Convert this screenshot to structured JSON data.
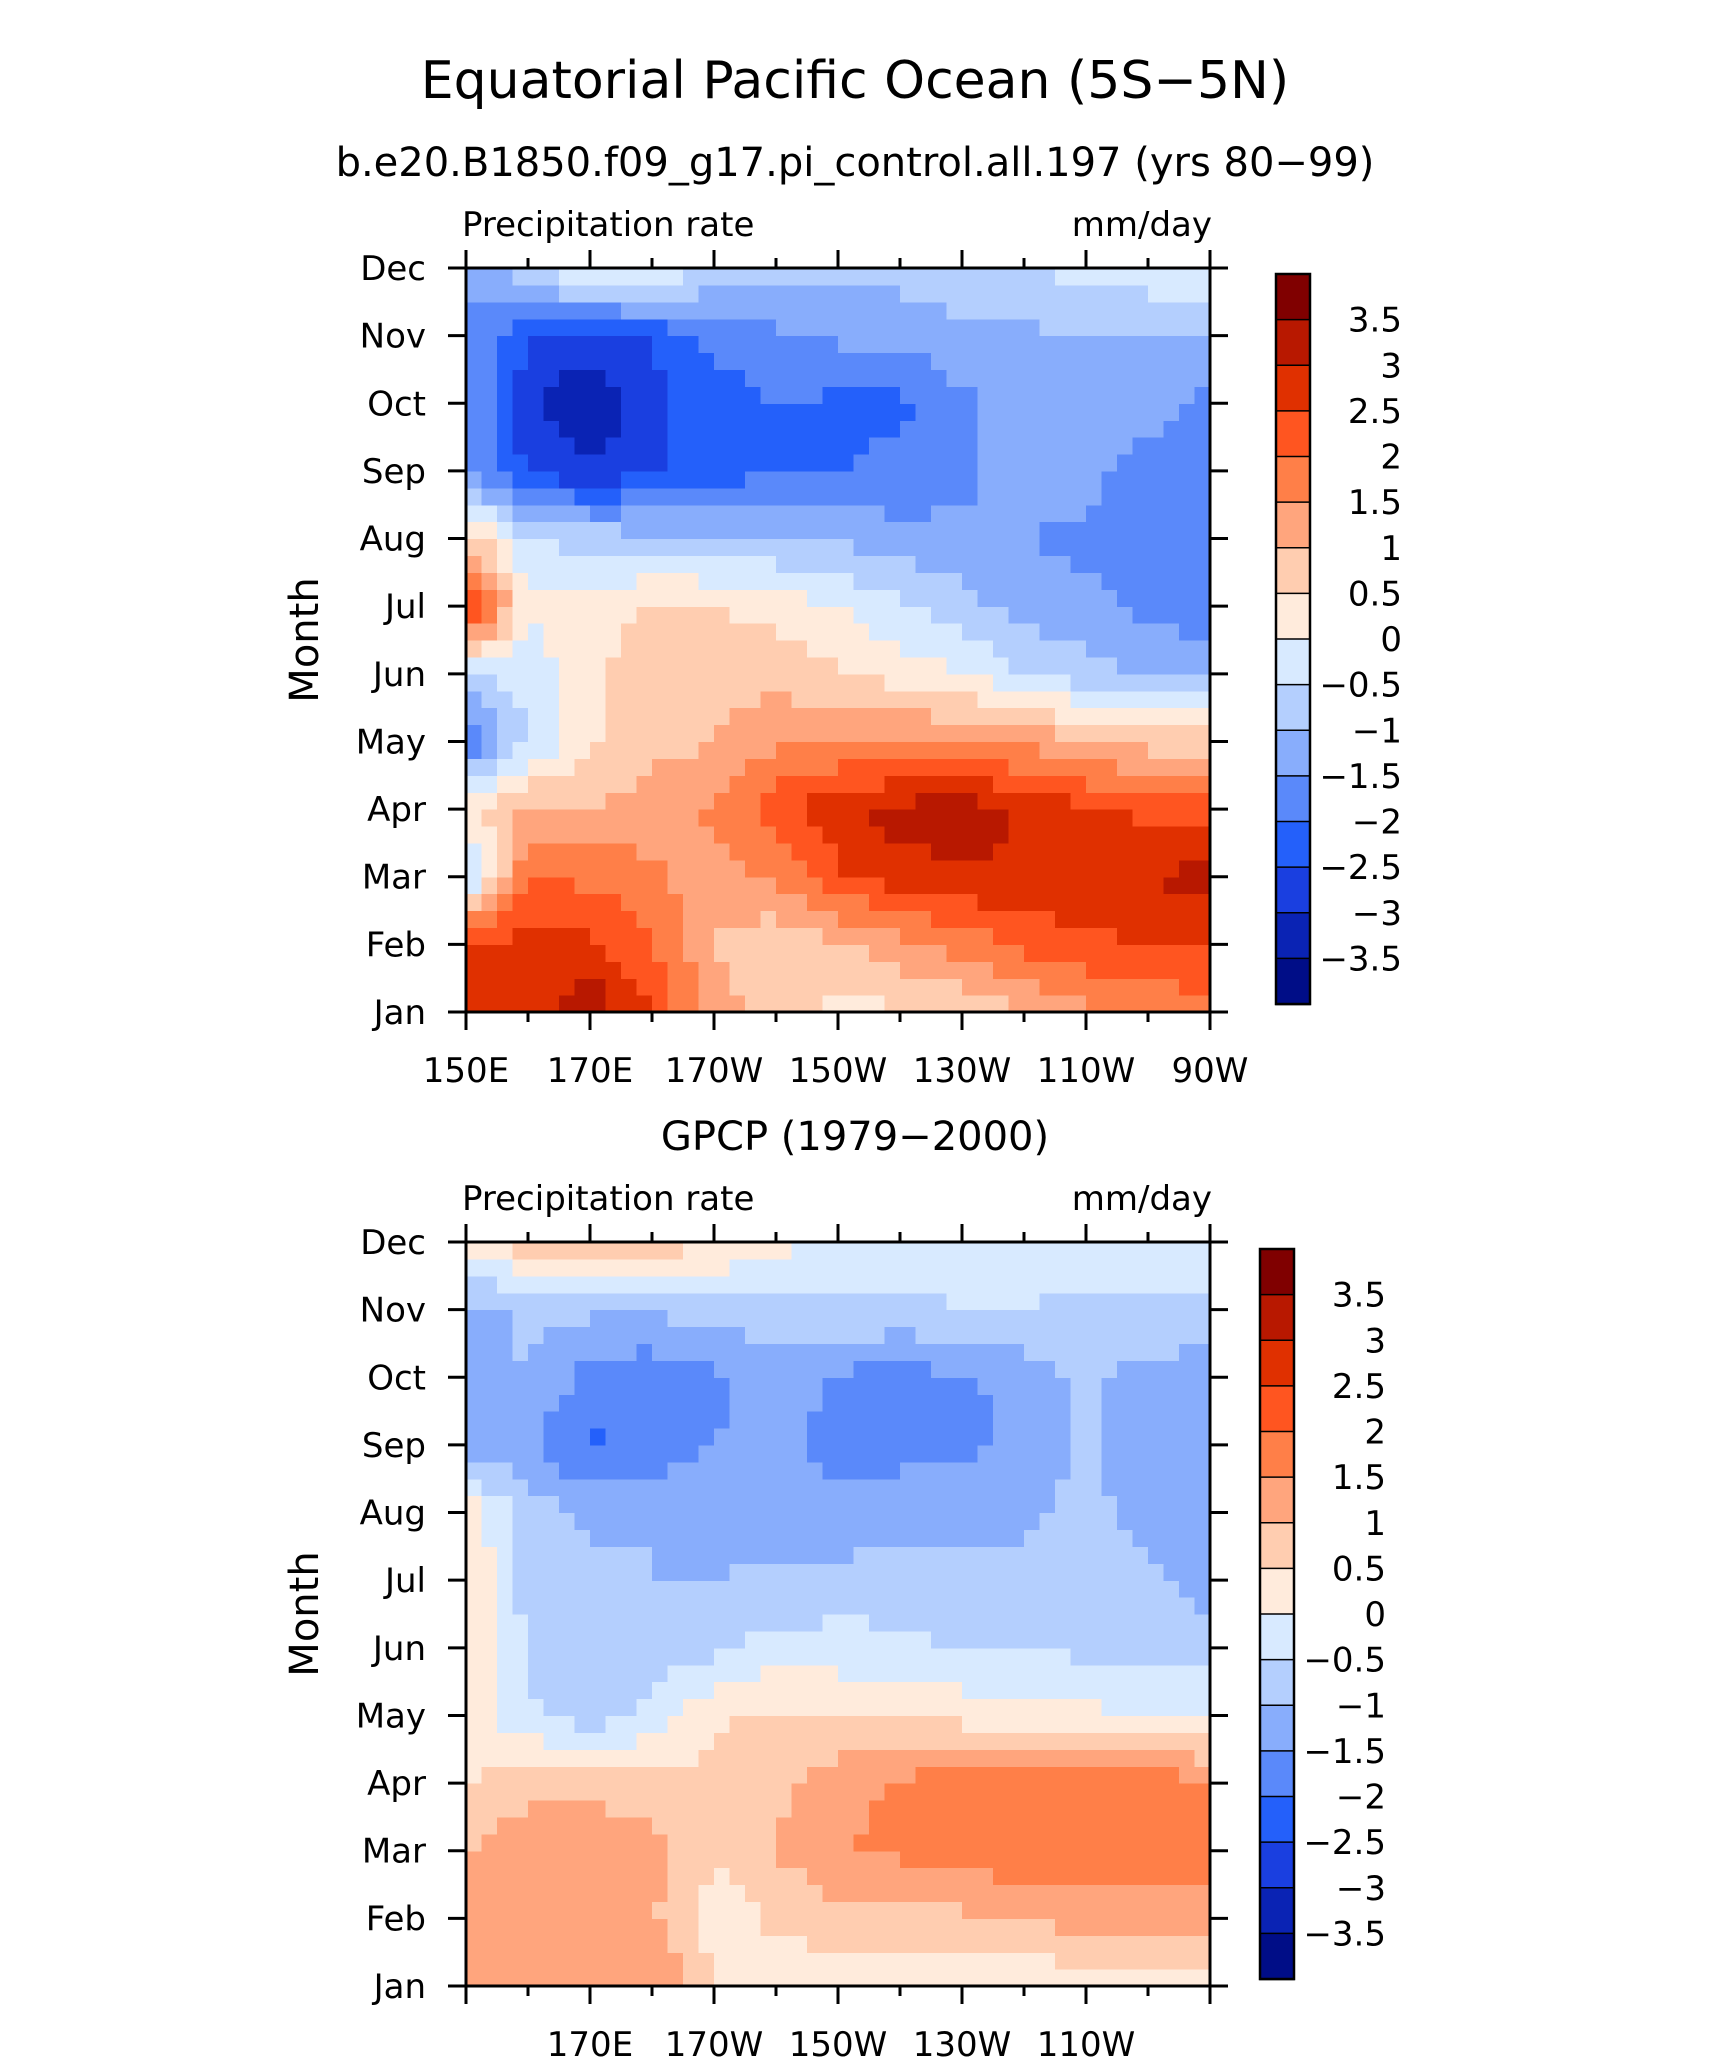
{
  "main_title": "Equatorial Pacific Ocean (5S−5N)",
  "colorbar_levels": [
    "3.5",
    "3",
    "2.5",
    "2",
    "1.5",
    "1",
    "0.5",
    "0",
    "−0.5",
    "−1",
    "−1.5",
    "−2",
    "−2.5",
    "−3",
    "−3.5"
  ],
  "colorbar_colors": [
    "#800000",
    "#b81800",
    "#e03000",
    "#ff5520",
    "#ff7f48",
    "#ffa57d",
    "#ffcdb0",
    "#ffebdc",
    "#d8eaff",
    "#b4cffe",
    "#88adfc",
    "#5a89fa",
    "#2460fa",
    "#1a3fe0",
    "#0a23b4",
    "#000d87"
  ],
  "month_labels": [
    "Dec",
    "Nov",
    "Oct",
    "Sep",
    "Aug",
    "Jul",
    "Jun",
    "May",
    "Apr",
    "Mar",
    "Feb",
    "Jan"
  ],
  "chart_data": [
    {
      "type": "heatmap",
      "title": "b.e20.B1850.f09_g17.pi_control.all.197 (yrs 80−99)",
      "left_string": "Precipitation rate",
      "right_string": "mm/day",
      "ylabel": "Month",
      "xlabel": "",
      "x_tick_labels": [
        "150E",
        "170E",
        "170W",
        "150W",
        "130W",
        "110W",
        "90W"
      ],
      "x": [
        150,
        160,
        170,
        180,
        190,
        200,
        210,
        220,
        230,
        240,
        250,
        260,
        270
      ],
      "y": [
        "Jan",
        "Feb",
        "Mar",
        "Apr",
        "May",
        "Jun",
        "Jul",
        "Aug",
        "Sep",
        "Oct",
        "Nov",
        "Dec"
      ],
      "xlim": [
        150,
        270
      ],
      "z": [
        [
          2.5,
          2.8,
          3.4,
          2.5,
          1.3,
          0.7,
          0.4,
          0.4,
          0.6,
          1.0,
          1.4,
          1.6,
          1.8
        ],
        [
          2.8,
          2.6,
          2.6,
          2.0,
          1.0,
          0.6,
          0.9,
          1.3,
          1.7,
          2.1,
          2.4,
          2.5,
          2.6
        ],
        [
          -0.8,
          2.0,
          1.9,
          1.6,
          1.2,
          1.6,
          2.4,
          2.8,
          2.9,
          3.0,
          2.9,
          3.0,
          3.2
        ],
        [
          0.3,
          1.2,
          1.0,
          1.3,
          1.6,
          2.3,
          2.9,
          3.2,
          3.3,
          2.9,
          2.6,
          2.4,
          2.4
        ],
        [
          -2.0,
          -0.5,
          0.4,
          0.8,
          1.0,
          1.4,
          1.5,
          1.5,
          1.5,
          1.4,
          1.0,
          0.8,
          0.8
        ],
        [
          -0.6,
          -0.3,
          0.4,
          0.8,
          0.9,
          0.8,
          0.6,
          0.3,
          0.0,
          -0.5,
          -0.8,
          -1.0,
          -1.2
        ],
        [
          3.0,
          0.1,
          0.1,
          0.6,
          0.5,
          0.3,
          0.0,
          -0.4,
          -0.8,
          -1.2,
          -1.4,
          -1.6,
          -1.8
        ],
        [
          0.9,
          -0.5,
          -0.7,
          -0.8,
          -0.9,
          -1.0,
          -1.1,
          -1.3,
          -1.4,
          -1.5,
          -1.6,
          -1.7,
          -1.9
        ],
        [
          -1.4,
          -2.6,
          -2.9,
          -2.6,
          -2.3,
          -2.0,
          -2.0,
          -1.9,
          -1.6,
          -1.3,
          -1.3,
          -1.8,
          -1.9
        ],
        [
          -1.4,
          -2.9,
          -3.6,
          -2.6,
          -2.3,
          -2.0,
          -2.1,
          -2.1,
          -1.6,
          -1.3,
          -1.2,
          -1.1,
          -1.8
        ],
        [
          -1.4,
          -2.5,
          -2.6,
          -2.5,
          -1.8,
          -1.6,
          -1.4,
          -1.3,
          -1.2,
          -1.1,
          -1.0,
          -1.0,
          -1.0
        ],
        [
          -1.6,
          -0.6,
          0.3,
          0.2,
          -0.6,
          -0.9,
          -0.9,
          -0.8,
          -0.6,
          -0.5,
          -0.3,
          -0.2,
          0.1
        ]
      ]
    },
    {
      "type": "heatmap",
      "title": "GPCP (1979−2000)",
      "left_string": "Precipitation rate",
      "right_string": "mm/day",
      "ylabel": "Month",
      "xlabel": "",
      "x_tick_labels": [
        "170E",
        "170W",
        "150W",
        "130W",
        "110W"
      ],
      "x": [
        150,
        160,
        170,
        180,
        190,
        200,
        210,
        220,
        230,
        240,
        250,
        260,
        270
      ],
      "y": [
        "Jan",
        "Feb",
        "Mar",
        "Apr",
        "May",
        "Jun",
        "Jul",
        "Aug",
        "Sep",
        "Oct",
        "Nov",
        "Dec"
      ],
      "xlim": [
        150,
        270
      ],
      "z": [
        [
          1.0,
          1.4,
          1.2,
          1.6,
          0.5,
          0.2,
          0.2,
          0.2,
          0.2,
          0.1,
          0.2,
          0.3,
          0.2
        ],
        [
          1.2,
          1.1,
          1.3,
          1.1,
          0.2,
          0.6,
          0.8,
          0.8,
          0.9,
          1.0,
          1.2,
          1.3,
          1.4
        ],
        [
          1.0,
          1.3,
          1.4,
          1.1,
          0.6,
          1.0,
          1.5,
          1.6,
          1.8,
          1.9,
          1.7,
          1.8,
          1.6
        ],
        [
          0.4,
          0.9,
          0.8,
          0.8,
          0.6,
          0.9,
          1.3,
          1.6,
          1.9,
          2.0,
          1.8,
          1.9,
          1.6
        ],
        [
          0.3,
          -0.4,
          -0.8,
          -0.3,
          0.4,
          0.6,
          0.5,
          0.4,
          0.3,
          0.2,
          0.1,
          0.0,
          -0.1
        ],
        [
          0.6,
          -0.6,
          -1.0,
          -0.8,
          -0.6,
          -0.3,
          -0.3,
          -0.4,
          -0.5,
          -0.5,
          -0.6,
          -0.6,
          -0.7
        ],
        [
          0.5,
          -0.7,
          -0.9,
          -1.0,
          -1.0,
          -0.9,
          -0.8,
          -0.7,
          -0.8,
          -0.8,
          -0.8,
          -0.9,
          -1.3
        ],
        [
          0.3,
          -0.7,
          -1.1,
          -1.0,
          -1.1,
          -1.2,
          -1.4,
          -1.3,
          -1.3,
          -1.1,
          -0.8,
          -1.2,
          -1.3
        ],
        [
          -1.2,
          -1.4,
          -2.1,
          -1.9,
          -1.5,
          -1.3,
          -1.7,
          -1.6,
          -1.6,
          -1.4,
          -0.9,
          -1.4,
          -1.4
        ],
        [
          -1.2,
          -1.0,
          -1.7,
          -1.9,
          -1.6,
          -1.2,
          -1.6,
          -1.7,
          -1.6,
          -1.3,
          -0.9,
          -1.2,
          -1.3
        ],
        [
          -1.2,
          -0.9,
          -0.9,
          -0.9,
          -0.8,
          -0.7,
          -0.6,
          -0.6,
          -0.5,
          -0.5,
          -0.6,
          -0.6,
          -0.6
        ],
        [
          0.2,
          0.8,
          1.1,
          0.8,
          0.6,
          0.2,
          -0.2,
          -0.3,
          -0.3,
          -0.3,
          -0.2,
          -0.3,
          -0.2
        ]
      ]
    }
  ]
}
